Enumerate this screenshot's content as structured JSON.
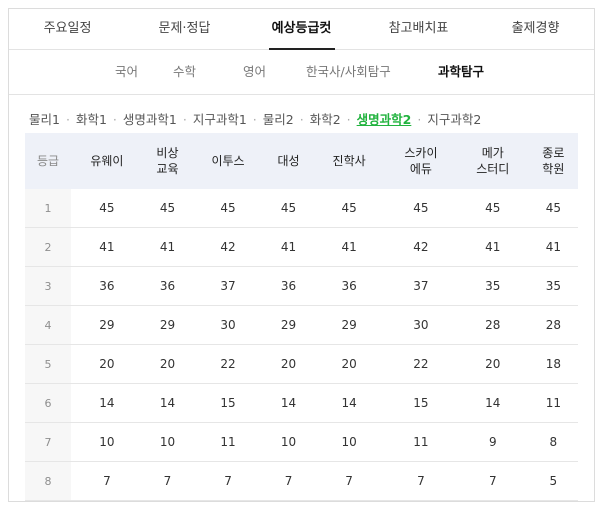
{
  "tabs": [
    {
      "label": "주요일정"
    },
    {
      "label": "문제·정답"
    },
    {
      "label": "예상등급컷"
    },
    {
      "label": "참고배치표"
    },
    {
      "label": "출제경향"
    }
  ],
  "active_tab": "예상등급컷",
  "subtabs": [
    {
      "label": "국어"
    },
    {
      "label": "수학"
    },
    {
      "label": "영어"
    },
    {
      "label": "한국사/사회탐구"
    },
    {
      "label": "과학탐구"
    }
  ],
  "active_subtab": "과학탐구",
  "filters": [
    {
      "label": "물리1"
    },
    {
      "label": "화학1"
    },
    {
      "label": "생명과학1"
    },
    {
      "label": "지구과학1"
    },
    {
      "label": "물리2"
    },
    {
      "label": "화학2"
    },
    {
      "label": "생명과학2"
    },
    {
      "label": "지구과학2"
    }
  ],
  "active_filter": "생명과학2",
  "table": {
    "grade_header": "등급",
    "columns": [
      {
        "line1": "유웨이",
        "line2": ""
      },
      {
        "line1": "비상",
        "line2": "교육"
      },
      {
        "line1": "이투스",
        "line2": ""
      },
      {
        "line1": "대성",
        "line2": ""
      },
      {
        "line1": "진학사",
        "line2": ""
      },
      {
        "line1": "스카이",
        "line2": "에듀"
      },
      {
        "line1": "메가",
        "line2": "스터디"
      },
      {
        "line1": "종로",
        "line2": "학원"
      }
    ],
    "rows": [
      {
        "grade": "1",
        "values": [
          "45",
          "45",
          "45",
          "45",
          "45",
          "45",
          "45",
          "45"
        ]
      },
      {
        "grade": "2",
        "values": [
          "41",
          "41",
          "42",
          "41",
          "41",
          "42",
          "41",
          "41"
        ]
      },
      {
        "grade": "3",
        "values": [
          "36",
          "36",
          "37",
          "36",
          "36",
          "37",
          "35",
          "35"
        ]
      },
      {
        "grade": "4",
        "values": [
          "29",
          "29",
          "30",
          "29",
          "29",
          "30",
          "28",
          "28"
        ]
      },
      {
        "grade": "5",
        "values": [
          "20",
          "20",
          "22",
          "20",
          "20",
          "22",
          "20",
          "18"
        ]
      },
      {
        "grade": "6",
        "values": [
          "14",
          "14",
          "15",
          "14",
          "14",
          "15",
          "14",
          "11"
        ]
      },
      {
        "grade": "7",
        "values": [
          "10",
          "10",
          "11",
          "10",
          "10",
          "11",
          "9",
          "8"
        ]
      },
      {
        "grade": "8",
        "values": [
          "7",
          "7",
          "7",
          "7",
          "7",
          "7",
          "7",
          "5"
        ]
      }
    ]
  }
}
